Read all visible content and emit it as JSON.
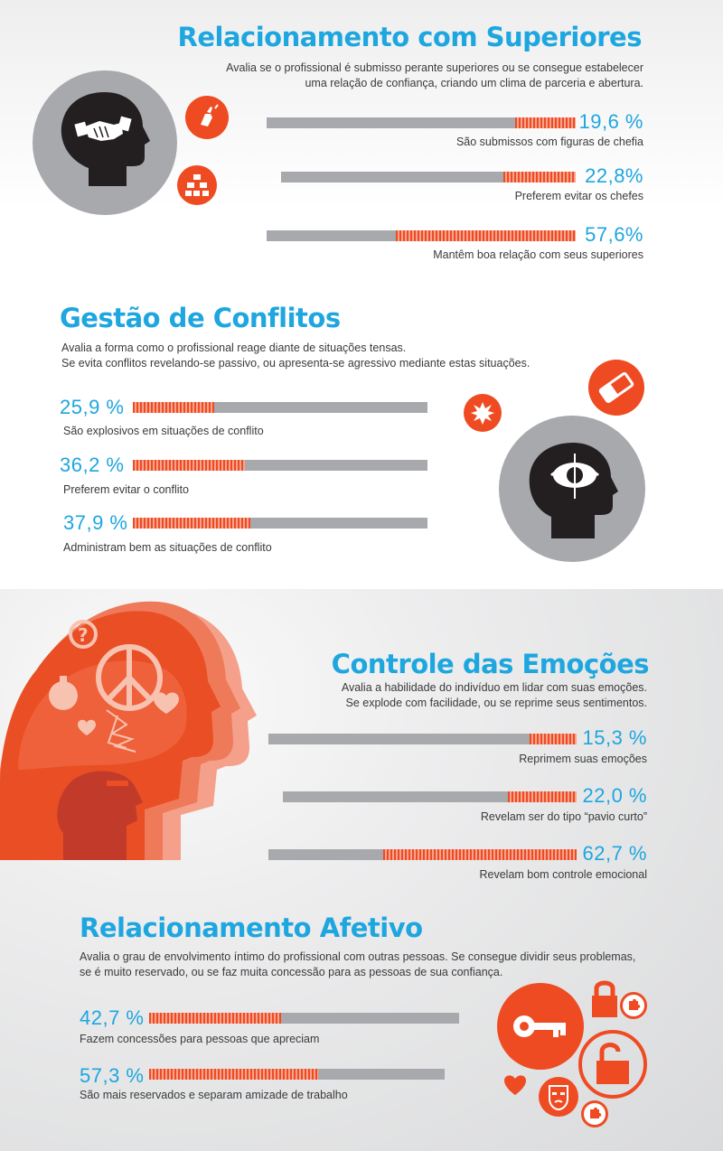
{
  "sections": {
    "superiores": {
      "title": "Relacionamento com Superiores",
      "desc1": "Avalia se o profissional é submisso perante superiores ou se consegue estabelecer",
      "desc2": "uma relação de confiança, criando um clima de parceria e abertura.",
      "items": [
        {
          "value": 19.6,
          "label": "19,6 %",
          "caption": "São submissos com figuras de chefia"
        },
        {
          "value": 22.8,
          "label": "22,8%",
          "caption": "Preferem evitar os chefes"
        },
        {
          "value": 57.6,
          "label": "57,6%",
          "caption": "Mantêm boa relação com seus superiores"
        }
      ],
      "icons": [
        "head-handshake-icon",
        "pen-icon",
        "hierarchy-icon"
      ]
    },
    "conflitos": {
      "title": "Gestão de Conflitos",
      "desc1": "Avalia a forma como o profissional reage diante de situações tensas.",
      "desc2": "Se evita conflitos revelando-se passivo, ou apresenta-se agressivo mediante estas situações.",
      "items": [
        {
          "value": 25.9,
          "label": "25,9 %",
          "caption": "São explosivos em situações de conflito"
        },
        {
          "value": 36.2,
          "label": "36,2 %",
          "caption": "Preferem evitar o conflito"
        },
        {
          "value": 37.9,
          "label": "37,9 %",
          "caption": "Administram bem as situações de conflito"
        }
      ],
      "icons": [
        "head-eye-icon",
        "eraser-icon",
        "explosion-icon"
      ]
    },
    "emocoes": {
      "title": "Controle das Emoções",
      "desc1": "Avalia a habilidade do indivíduo em lidar com suas emoções.",
      "desc2": "Se explode com facilidade, ou se reprime seus sentimentos.",
      "items": [
        {
          "value": 15.3,
          "label": "15,3 %",
          "caption": "Reprimem suas emoções"
        },
        {
          "value": 22.0,
          "label": "22,0 %",
          "caption": "Revelam ser do tipo “pavio curto”"
        },
        {
          "value": 62.7,
          "label": "62,7 %",
          "caption": "Revelam bom controle emocional"
        }
      ],
      "icons": [
        "heads-emotions-icon",
        "peace-icon",
        "bomb-icon",
        "heart-icon",
        "question-icon"
      ]
    },
    "afetivo": {
      "title": "Relacionamento Afetivo",
      "desc1": "Avalia o grau de envolvimento íntimo do profissional com outras pessoas. Se consegue dividir seus problemas,",
      "desc2": "se é muito reservado, ou se faz muita concessão para as pessoas de sua confiança.",
      "items": [
        {
          "value": 42.7,
          "label": "42,7 %",
          "caption": "Fazem concessões para pessoas que apreciam"
        },
        {
          "value": 57.3,
          "label": "57,3 %",
          "caption": "São mais reservados e separam amizade de trabalho"
        }
      ],
      "icons": [
        "key-icon",
        "padlock-closed-icon",
        "padlock-open-icon",
        "heart-icon",
        "mask-icon",
        "puzzle-icon"
      ]
    }
  },
  "colors": {
    "accent": "#1ea6df",
    "orange": "#ef4b23",
    "bar": "#a7a9ac",
    "dark": "#231f20"
  }
}
